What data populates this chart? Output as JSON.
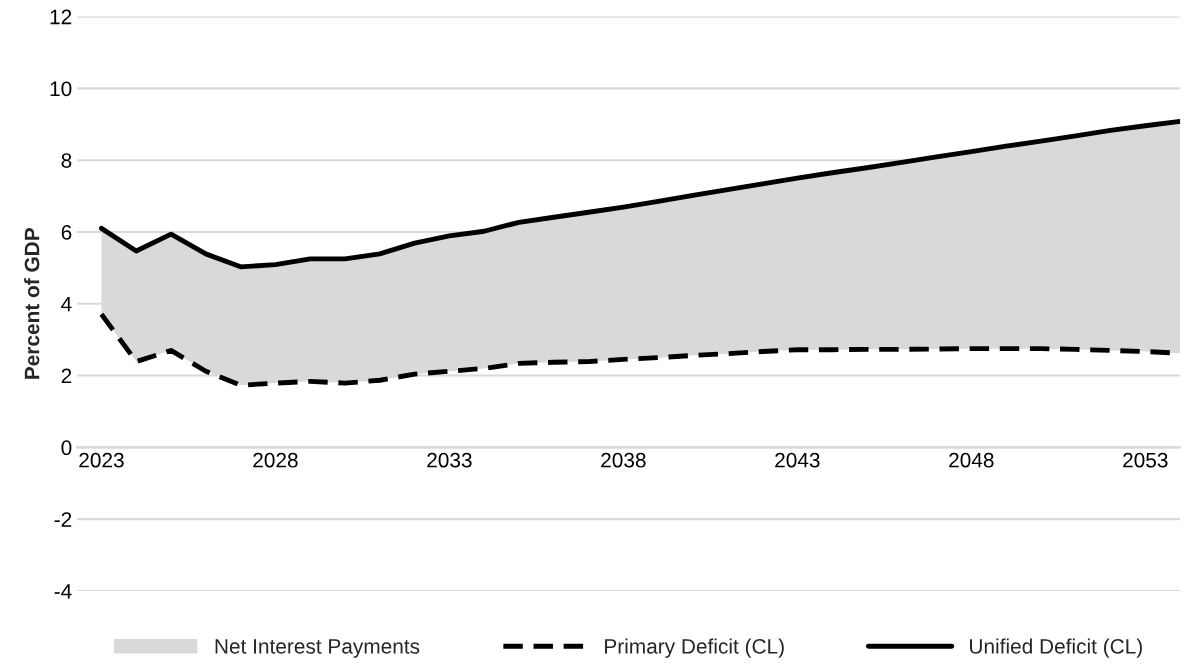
{
  "chart_data": {
    "type": "line",
    "ylabel": "Percent of GDP",
    "x": [
      2023,
      2024,
      2025,
      2026,
      2027,
      2028,
      2029,
      2030,
      2031,
      2032,
      2033,
      2034,
      2035,
      2036,
      2037,
      2038,
      2039,
      2040,
      2041,
      2042,
      2043,
      2044,
      2045,
      2046,
      2047,
      2048,
      2049,
      2050,
      2051,
      2052,
      2053,
      2054
    ],
    "series": [
      {
        "name": "Net Interest Payments",
        "type": "area",
        "color": "#d9d9d9",
        "values": [
          null,
          null,
          null,
          null,
          null,
          null,
          null,
          null,
          null,
          null,
          null,
          null,
          null,
          null,
          null,
          null,
          null,
          null,
          null,
          null,
          null,
          null,
          null,
          null,
          null,
          null,
          null,
          null,
          null,
          null,
          null,
          null
        ],
        "lower": [
          3.71,
          2.39,
          2.7,
          2.12,
          1.73,
          1.79,
          1.84,
          1.79,
          1.87,
          2.04,
          2.12,
          2.2,
          2.34,
          2.37,
          2.39,
          2.45,
          2.5,
          2.56,
          2.61,
          2.67,
          2.72,
          2.72,
          2.73,
          2.73,
          2.74,
          2.75,
          2.75,
          2.75,
          2.73,
          2.7,
          2.67,
          2.62
        ],
        "upper": [
          6.1,
          5.47,
          5.94,
          5.39,
          5.03,
          5.09,
          5.25,
          5.25,
          5.39,
          5.69,
          5.89,
          6.02,
          6.27,
          6.41,
          6.55,
          6.69,
          6.85,
          7.02,
          7.18,
          7.34,
          7.5,
          7.65,
          7.79,
          7.94,
          8.09,
          8.24,
          8.39,
          8.53,
          8.68,
          8.83,
          8.96,
          9.08
        ]
      },
      {
        "name": "Primary Deficit (CL)",
        "type": "line",
        "color": "#000000",
        "line_style": "dashed",
        "values": [
          3.71,
          2.39,
          2.7,
          2.12,
          1.73,
          1.79,
          1.84,
          1.79,
          1.87,
          2.04,
          2.12,
          2.2,
          2.34,
          2.37,
          2.39,
          2.45,
          2.5,
          2.56,
          2.61,
          2.67,
          2.72,
          2.72,
          2.73,
          2.73,
          2.74,
          2.75,
          2.75,
          2.75,
          2.73,
          2.7,
          2.67,
          2.62
        ]
      },
      {
        "name": "Unified Deficit (CL)",
        "type": "line",
        "color": "#000000",
        "line_style": "solid",
        "values": [
          6.1,
          5.47,
          5.94,
          5.39,
          5.03,
          5.09,
          5.25,
          5.25,
          5.39,
          5.69,
          5.89,
          6.02,
          6.27,
          6.41,
          6.55,
          6.69,
          6.85,
          7.02,
          7.18,
          7.34,
          7.5,
          7.65,
          7.79,
          7.94,
          8.09,
          8.24,
          8.39,
          8.53,
          8.68,
          8.83,
          8.96,
          9.08
        ]
      }
    ],
    "xlim": [
      2022.3,
      2054
    ],
    "xticks": [
      2023,
      2028,
      2033,
      2038,
      2043,
      2048,
      2053
    ],
    "ylim": [
      -4,
      12
    ],
    "yticks": [
      -4,
      -2,
      0,
      2,
      4,
      6,
      8,
      10,
      12
    ],
    "grid": "y",
    "legend": "bottom",
    "marker": "none"
  }
}
